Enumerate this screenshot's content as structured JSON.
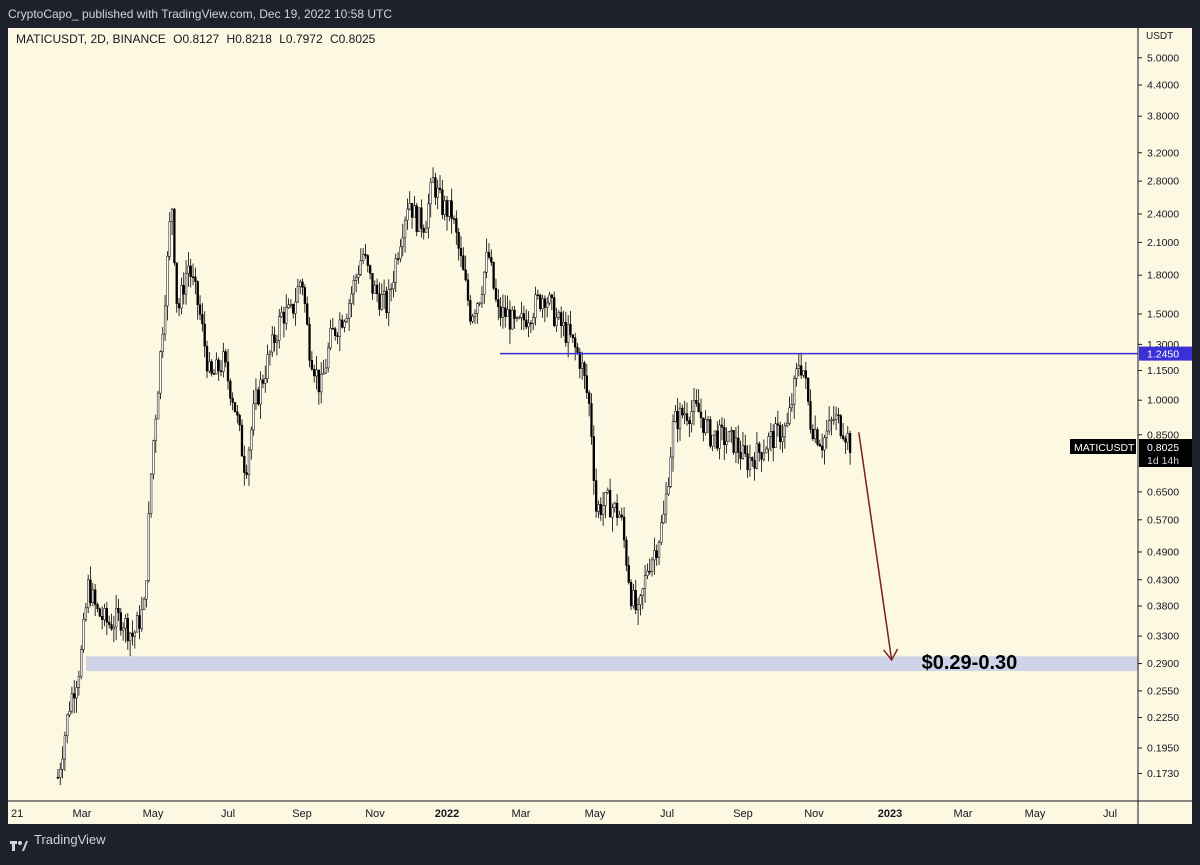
{
  "header": {
    "published_text": "CryptoCapo_ published with TradingView.com, Dec 19, 2022 10:58 UTC"
  },
  "legend": {
    "symbol": "MATICUSDT, 2D, BINANCE",
    "open": "O0.8127",
    "high": "H0.8218",
    "low": "L0.7972",
    "close": "C0.8025"
  },
  "footer": {
    "brand": "TradingView"
  },
  "colors": {
    "background": "#fdf8e1",
    "candle_up": "#ffffff",
    "candle_down": "#000000",
    "resistance_line": "#3b2fd6",
    "support_zone": "#c7cde8",
    "projection_arrow": "#7a1f1f"
  },
  "chart_data": {
    "type": "candlestick",
    "symbol": "MATICUSDT",
    "timeframe": "2D",
    "exchange": "BINANCE",
    "y_scale": "log",
    "y_unit": "USDT",
    "ylim": [
      0.158,
      5.5
    ],
    "y_ticks": [
      "5.0000",
      "4.4000",
      "3.8000",
      "3.2000",
      "2.8000",
      "2.4000",
      "2.1000",
      "1.8000",
      "1.5000",
      "1.3000",
      "1.1500",
      "1.0000",
      "0.8500",
      "0.6500",
      "0.5700",
      "0.4900",
      "0.4300",
      "0.3800",
      "0.3300",
      "0.2900",
      "0.2550",
      "0.2250",
      "0.1950",
      "0.1730"
    ],
    "y_tick_values": [
      5.0,
      4.4,
      3.8,
      3.2,
      2.8,
      2.4,
      2.1,
      1.8,
      1.5,
      1.3,
      1.15,
      1.0,
      0.85,
      0.65,
      0.57,
      0.49,
      0.43,
      0.38,
      0.33,
      0.29,
      0.255,
      0.225,
      0.195,
      0.173
    ],
    "x_ticks": [
      "21",
      "Mar",
      "May",
      "Jul",
      "Sep",
      "Nov",
      "2022",
      "Mar",
      "May",
      "Jul",
      "Sep",
      "Nov",
      "2023",
      "Mar",
      "May",
      "Jul"
    ],
    "x_range": [
      "2021-01",
      "2023-07"
    ],
    "price_series": [
      [
        "2021-02-10",
        0.17
      ],
      [
        "2021-02-20",
        0.24
      ],
      [
        "2021-03-01",
        0.29
      ],
      [
        "2021-03-08",
        0.42
      ],
      [
        "2021-03-15",
        0.37
      ],
      [
        "2021-03-25",
        0.35
      ],
      [
        "2021-04-05",
        0.36
      ],
      [
        "2021-04-15",
        0.33
      ],
      [
        "2021-04-25",
        0.38
      ],
      [
        "2021-05-01",
        0.75
      ],
      [
        "2021-05-08",
        1.2
      ],
      [
        "2021-05-15",
        2.0
      ],
      [
        "2021-05-18",
        2.6
      ],
      [
        "2021-05-23",
        1.5
      ],
      [
        "2021-06-01",
        1.9
      ],
      [
        "2021-06-10",
        1.55
      ],
      [
        "2021-06-20",
        1.1
      ],
      [
        "2021-07-01",
        1.2
      ],
      [
        "2021-07-10",
        1.0
      ],
      [
        "2021-07-20",
        0.72
      ],
      [
        "2021-07-28",
        0.98
      ],
      [
        "2021-08-08",
        1.2
      ],
      [
        "2021-08-20",
        1.5
      ],
      [
        "2021-08-28",
        1.5
      ],
      [
        "2021-09-06",
        1.8
      ],
      [
        "2021-09-12",
        1.3
      ],
      [
        "2021-09-22",
        1.05
      ],
      [
        "2021-10-01",
        1.35
      ],
      [
        "2021-10-15",
        1.55
      ],
      [
        "2021-10-28",
        2.0
      ],
      [
        "2021-11-05",
        1.7
      ],
      [
        "2021-11-18",
        1.55
      ],
      [
        "2021-11-28",
        2.1
      ],
      [
        "2021-12-06",
        2.6
      ],
      [
        "2021-12-12",
        2.35
      ],
      [
        "2021-12-20",
        2.3
      ],
      [
        "2021-12-27",
        2.8
      ],
      [
        "2022-01-03",
        2.5
      ],
      [
        "2022-01-12",
        2.4
      ],
      [
        "2022-01-20",
        1.9
      ],
      [
        "2022-01-28",
        1.5
      ],
      [
        "2022-02-05",
        1.65
      ],
      [
        "2022-02-12",
        2.0
      ],
      [
        "2022-02-20",
        1.5
      ],
      [
        "2022-02-28",
        1.5
      ],
      [
        "2022-03-08",
        1.4
      ],
      [
        "2022-03-18",
        1.5
      ],
      [
        "2022-04-01",
        1.65
      ],
      [
        "2022-04-12",
        1.45
      ],
      [
        "2022-04-22",
        1.35
      ],
      [
        "2022-05-02",
        1.2
      ],
      [
        "2022-05-10",
        0.95
      ],
      [
        "2022-05-15",
        0.6
      ],
      [
        "2022-05-25",
        0.62
      ],
      [
        "2022-06-05",
        0.58
      ],
      [
        "2022-06-14",
        0.4
      ],
      [
        "2022-06-20",
        0.36
      ],
      [
        "2022-06-28",
        0.46
      ],
      [
        "2022-07-05",
        0.5
      ],
      [
        "2022-07-12",
        0.58
      ],
      [
        "2022-07-20",
        0.9
      ],
      [
        "2022-07-30",
        0.95
      ],
      [
        "2022-08-10",
        0.95
      ],
      [
        "2022-08-20",
        0.85
      ],
      [
        "2022-08-30",
        0.84
      ],
      [
        "2022-09-10",
        0.82
      ],
      [
        "2022-09-20",
        0.75
      ],
      [
        "2022-09-30",
        0.78
      ],
      [
        "2022-10-10",
        0.83
      ],
      [
        "2022-10-25",
        0.88
      ],
      [
        "2022-11-04",
        1.2
      ],
      [
        "2022-11-08",
        1.15
      ],
      [
        "2022-11-14",
        0.9
      ],
      [
        "2022-11-24",
        0.82
      ],
      [
        "2022-12-04",
        0.92
      ],
      [
        "2022-12-12",
        0.88
      ],
      [
        "2022-12-19",
        0.8025
      ]
    ],
    "horizontal_line": {
      "price": 1.245,
      "label": "1.2450",
      "from": "2022-02-22",
      "color": "#3b2fd6"
    },
    "support_zone": {
      "low": 0.28,
      "high": 0.3
    },
    "annotation": {
      "text": "$0.29-0.30",
      "arrow_from": [
        "2022-12-25",
        0.86
      ],
      "arrow_to": [
        "2023-01-22",
        0.295
      ]
    },
    "last_price": {
      "symbol": "MATICUSDT",
      "value": "0.8025",
      "countdown": "1d 14h"
    }
  }
}
